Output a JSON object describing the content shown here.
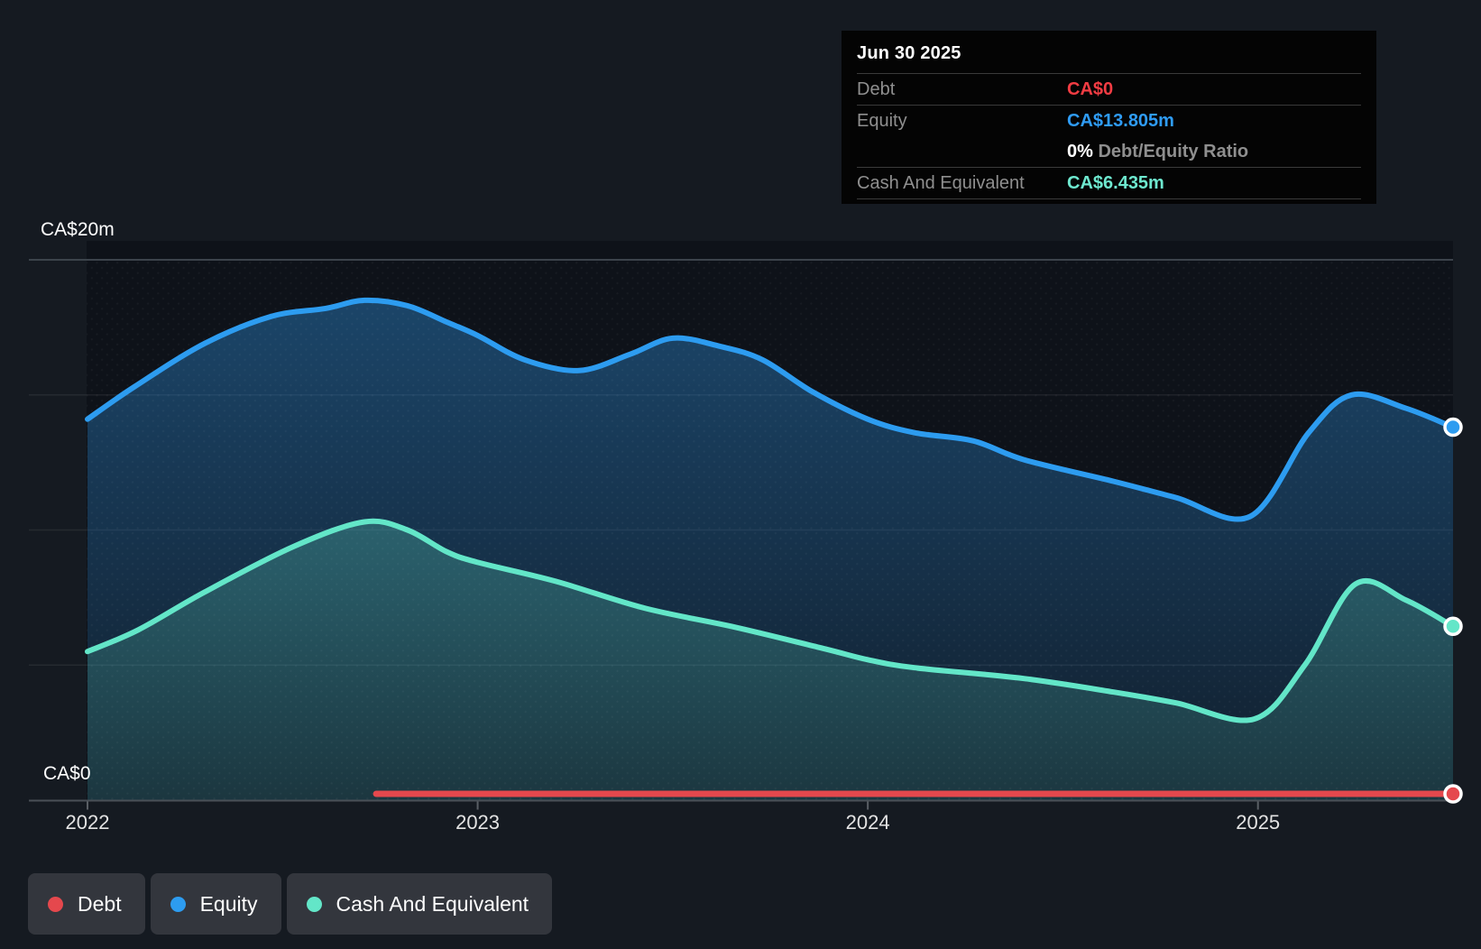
{
  "colors": {
    "debt": "#e5484d",
    "equity": "#2d9cf0",
    "cash": "#63e6c8",
    "debt_text": "#f23c43",
    "equity_text": "#2f9cf5",
    "cash_text": "#6ee8cf",
    "page_bg": "#151a21",
    "plot_bg": "#0e1219",
    "tooltip_bg": "#040404"
  },
  "tooltip": {
    "title": "Jun 30 2025",
    "debt_label": "Debt",
    "debt_value": "CA$0",
    "equity_label": "Equity",
    "equity_value": "CA$13.805m",
    "ratio_value": "0%",
    "ratio_label": "Debt/Equity Ratio",
    "cash_label": "Cash And Equivalent",
    "cash_value": "CA$6.435m"
  },
  "y_axis": {
    "top_label": "CA$20m",
    "bottom_label": "CA$0"
  },
  "x_axis": {
    "ticks": [
      "2022",
      "2023",
      "2024",
      "2025"
    ]
  },
  "legend": [
    {
      "label": "Debt",
      "color": "#e5484d"
    },
    {
      "label": "Equity",
      "color": "#2d9cf0"
    },
    {
      "label": "Cash And Equivalent",
      "color": "#63e6c8"
    }
  ],
  "chart_data": {
    "type": "area",
    "x_unit": "year_decimal",
    "y_unit": "CA$m",
    "x_range": [
      2022.0,
      2025.5
    ],
    "y_range": [
      0,
      20
    ],
    "y_gridlines": [
      0,
      5,
      10,
      15,
      20
    ],
    "x_tick_years": [
      2022,
      2023,
      2024,
      2025
    ],
    "grid": true,
    "legend_position": "bottom-left",
    "end_markers": true,
    "series": [
      {
        "name": "Equity",
        "color": "#2d9cf0",
        "points": [
          [
            2022.0,
            14.1
          ],
          [
            2022.12,
            15.3
          ],
          [
            2022.3,
            16.9
          ],
          [
            2022.47,
            17.9
          ],
          [
            2022.61,
            18.2
          ],
          [
            2022.71,
            18.5
          ],
          [
            2022.82,
            18.3
          ],
          [
            2022.92,
            17.7
          ],
          [
            2023.0,
            17.2
          ],
          [
            2023.12,
            16.3
          ],
          [
            2023.26,
            15.9
          ],
          [
            2023.39,
            16.5
          ],
          [
            2023.5,
            17.1
          ],
          [
            2023.62,
            16.8
          ],
          [
            2023.73,
            16.3
          ],
          [
            2023.86,
            15.1
          ],
          [
            2024.0,
            14.1
          ],
          [
            2024.12,
            13.6
          ],
          [
            2024.27,
            13.3
          ],
          [
            2024.4,
            12.6
          ],
          [
            2024.63,
            11.8
          ],
          [
            2024.79,
            11.2
          ],
          [
            2024.98,
            10.5
          ],
          [
            2025.13,
            13.6
          ],
          [
            2025.24,
            15.0
          ],
          [
            2025.38,
            14.5
          ],
          [
            2025.5,
            13.805
          ]
        ]
      },
      {
        "name": "Cash And Equivalent",
        "color": "#63e6c8",
        "points": [
          [
            2022.0,
            5.5
          ],
          [
            2022.13,
            6.3
          ],
          [
            2022.3,
            7.7
          ],
          [
            2022.53,
            9.4
          ],
          [
            2022.71,
            10.3
          ],
          [
            2022.82,
            10.0
          ],
          [
            2022.92,
            9.2
          ],
          [
            2023.0,
            8.8
          ],
          [
            2023.2,
            8.1
          ],
          [
            2023.43,
            7.1
          ],
          [
            2023.66,
            6.4
          ],
          [
            2023.89,
            5.6
          ],
          [
            2024.0,
            5.2
          ],
          [
            2024.12,
            4.9
          ],
          [
            2024.4,
            4.5
          ],
          [
            2024.63,
            4.0
          ],
          [
            2024.79,
            3.6
          ],
          [
            2024.99,
            3.0
          ],
          [
            2025.12,
            5.0
          ],
          [
            2025.25,
            8.0
          ],
          [
            2025.38,
            7.4
          ],
          [
            2025.5,
            6.435
          ]
        ]
      },
      {
        "name": "Debt",
        "color": "#e5484d",
        "points": [
          [
            2022.74,
            0
          ],
          [
            2025.5,
            0
          ]
        ]
      }
    ]
  }
}
